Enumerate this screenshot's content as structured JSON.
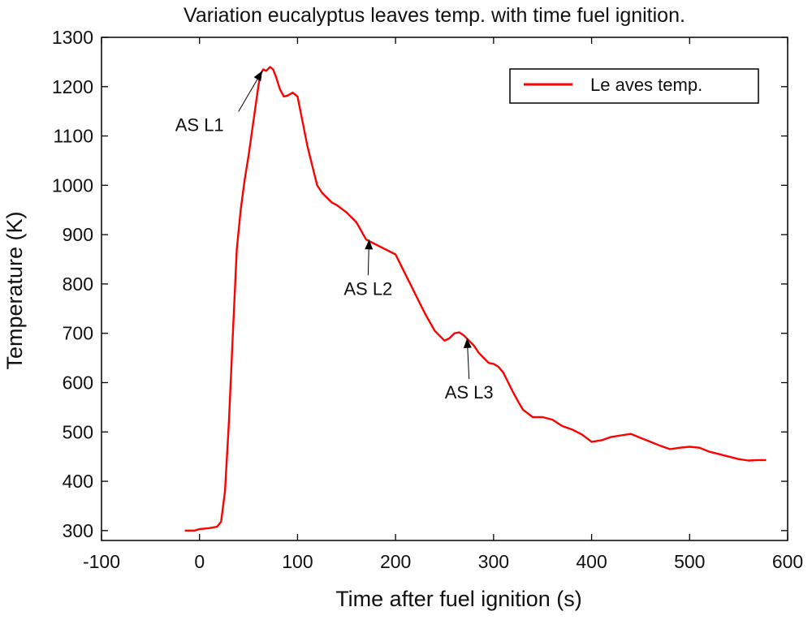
{
  "chart_data": {
    "type": "line",
    "title": "Variation eucalyptus leaves temp. with time fuel ignition.",
    "xlabel": "Time after fuel ignition (s)",
    "ylabel": "Temperature (K)",
    "xlim": [
      -100,
      600
    ],
    "ylim": [
      280,
      1300
    ],
    "x_ticks": [
      -100,
      0,
      100,
      200,
      300,
      400,
      500,
      600
    ],
    "y_ticks": [
      300,
      400,
      500,
      600,
      700,
      800,
      900,
      1000,
      1100,
      1200,
      1300
    ],
    "grid": false,
    "legend_position": "top-right",
    "series": [
      {
        "name": "Le aves temp.",
        "color": "#ff0000",
        "x": [
          -15,
          -5,
          0,
          10,
          18,
          22,
          26,
          30,
          34,
          38,
          42,
          46,
          50,
          55,
          60,
          62,
          65,
          68,
          72,
          75,
          78,
          82,
          86,
          90,
          95,
          100,
          105,
          110,
          115,
          120,
          125,
          130,
          135,
          140,
          150,
          160,
          170,
          180,
          190,
          200,
          210,
          220,
          230,
          240,
          250,
          255,
          260,
          265,
          270,
          275,
          280,
          285,
          290,
          295,
          300,
          305,
          310,
          315,
          320,
          325,
          330,
          340,
          350,
          360,
          370,
          380,
          390,
          400,
          410,
          420,
          430,
          440,
          450,
          460,
          470,
          480,
          490,
          500,
          510,
          520,
          530,
          540,
          550,
          560,
          570,
          578
        ],
        "y": [
          300,
          300,
          303,
          305,
          308,
          318,
          380,
          520,
          700,
          870,
          950,
          1010,
          1060,
          1130,
          1200,
          1225,
          1235,
          1232,
          1240,
          1235,
          1220,
          1195,
          1180,
          1182,
          1188,
          1180,
          1130,
          1080,
          1040,
          1000,
          985,
          975,
          965,
          960,
          945,
          925,
          890,
          880,
          870,
          860,
          820,
          780,
          740,
          705,
          685,
          690,
          700,
          702,
          695,
          685,
          675,
          660,
          650,
          640,
          638,
          632,
          620,
          600,
          580,
          562,
          545,
          530,
          530,
          525,
          512,
          505,
          495,
          480,
          483,
          490,
          493,
          496,
          488,
          480,
          472,
          465,
          468,
          470,
          468,
          460,
          455,
          450,
          445,
          442,
          443,
          443
        ]
      }
    ],
    "annotations": [
      {
        "label": "AS L1",
        "x": 64,
        "y": 1232,
        "text_x": 0,
        "text_y": 1110
      },
      {
        "label": "AS L2",
        "x": 173,
        "y": 890,
        "text_x": 172,
        "text_y": 778
      },
      {
        "label": "AS L3",
        "x": 273,
        "y": 690,
        "text_x": 275,
        "text_y": 568
      }
    ]
  }
}
